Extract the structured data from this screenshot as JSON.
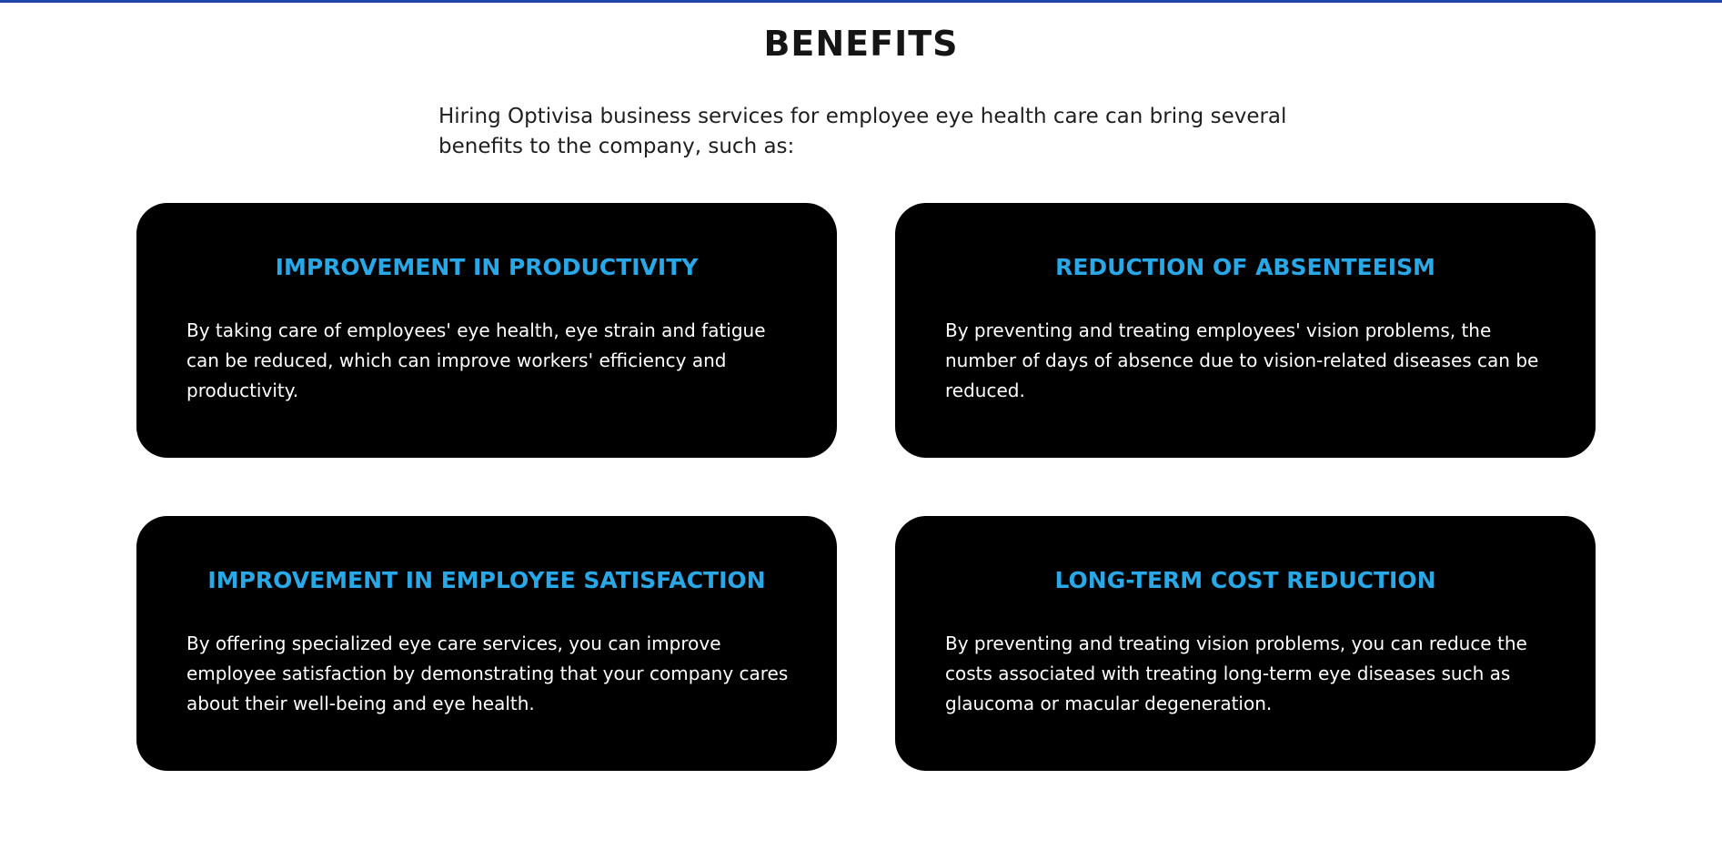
{
  "accent_colors": {
    "top_bar": "#1f45a8",
    "card_title": "#29a8e8",
    "card_background": "#000000"
  },
  "section": {
    "title": "BENEFITS",
    "intro": "Hiring Optivisa business services for employee eye health care can bring several benefits to the company, such as:"
  },
  "cards": [
    {
      "title": "IMPROVEMENT IN PRODUCTIVITY",
      "text": "By taking care of employees' eye health, eye strain and fatigue can be reduced, which can improve workers' efficiency and productivity."
    },
    {
      "title": "REDUCTION OF ABSENTEEISM",
      "text": "By preventing and treating employees' vision problems, the number of days of absence due to vision-related diseases can be reduced."
    },
    {
      "title": "IMPROVEMENT IN EMPLOYEE SATISFACTION",
      "text": "By offering specialized eye care services, you can improve employee satisfaction by demonstrating that your company cares about their well-being and eye health."
    },
    {
      "title": "LONG-TERM COST REDUCTION",
      "text": "By preventing and treating vision problems, you can reduce the costs associated with treating long-term eye diseases such as glaucoma or macular degeneration."
    }
  ]
}
